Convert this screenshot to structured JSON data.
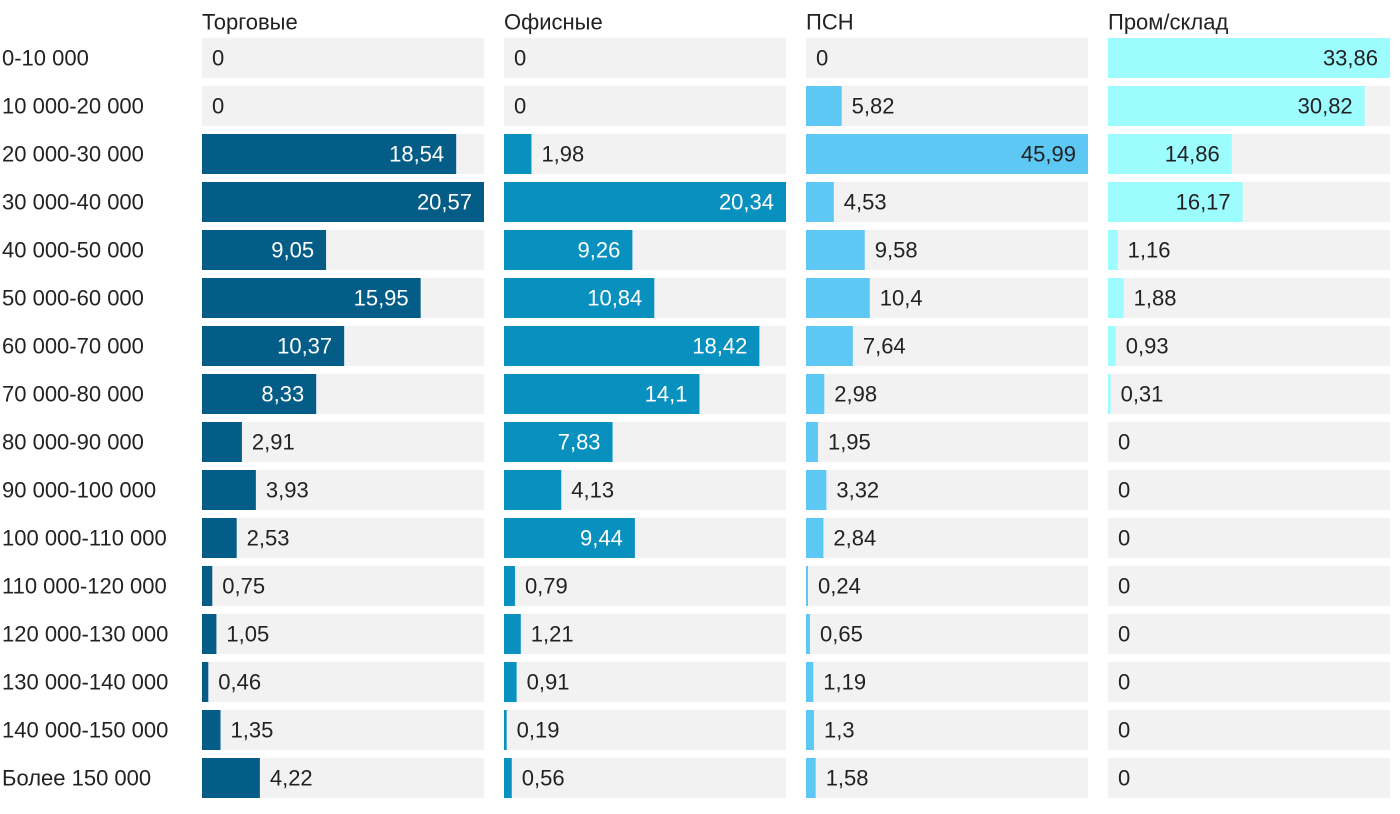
{
  "chart_data": {
    "type": "bar",
    "orientation": "horizontal",
    "layout": "small-multiples",
    "categories": [
      "0-10 000",
      "10 000-20 000",
      "20 000-30 000",
      "30 000-40 000",
      "40 000-50 000",
      "50 000-60 000",
      "60 000-70 000",
      "70 000-80 000",
      "80 000-90 000",
      "90 000-100 000",
      "100 000-110 000",
      "110 000-120 000",
      "120 000-130 000",
      "130 000-140 000",
      "140 000-150 000",
      "Более 150 000"
    ],
    "series": [
      {
        "name": "Торговые",
        "color": "#045d87",
        "max": 20.57,
        "values": [
          0,
          0,
          18.54,
          20.57,
          9.05,
          15.95,
          10.37,
          8.33,
          2.91,
          3.93,
          2.53,
          0.75,
          1.05,
          0.46,
          1.35,
          4.22
        ],
        "labels": [
          "0",
          "0",
          "18,54",
          "20,57",
          "9,05",
          "15,95",
          "10,37",
          "8,33",
          "2,91",
          "3,93",
          "2,53",
          "0,75",
          "1,05",
          "0,46",
          "1,35",
          "4,22"
        ]
      },
      {
        "name": "Офисные",
        "color": "#0891bf",
        "max": 20.34,
        "values": [
          0,
          0,
          1.98,
          20.34,
          9.26,
          10.84,
          18.42,
          14.1,
          7.83,
          4.13,
          9.44,
          0.79,
          1.21,
          0.91,
          0.19,
          0.56
        ],
        "labels": [
          "0",
          "0",
          "1,98",
          "20,34",
          "9,26",
          "10,84",
          "18,42",
          "14,1",
          "7,83",
          "4,13",
          "9,44",
          "0,79",
          "1,21",
          "0,91",
          "0,19",
          "0,56"
        ]
      },
      {
        "name": "ПСН",
        "color": "#5ec8f5",
        "max": 45.99,
        "values": [
          0,
          5.82,
          45.99,
          4.53,
          9.58,
          10.4,
          7.64,
          2.98,
          1.95,
          3.32,
          2.84,
          0.24,
          0.65,
          1.19,
          1.3,
          1.58
        ],
        "labels": [
          "0",
          "5,82",
          "45,99",
          "4,53",
          "9,58",
          "10,4",
          "7,64",
          "2,98",
          "1,95",
          "3,32",
          "2,84",
          "0,24",
          "0,65",
          "1,19",
          "1,3",
          "1,58"
        ]
      },
      {
        "name": "Пром/склад",
        "color": "#9cfcfe",
        "max": 33.86,
        "values": [
          33.86,
          30.82,
          14.86,
          16.17,
          1.16,
          1.88,
          0.93,
          0.31,
          0,
          0,
          0,
          0,
          0,
          0,
          0,
          0
        ],
        "labels": [
          "33,86",
          "30,82",
          "14,86",
          "16,17",
          "1,16",
          "1,88",
          "0,93",
          "0,31",
          "0",
          "0",
          "0",
          "0",
          "0",
          "0",
          "0",
          "0"
        ]
      }
    ],
    "colors": {
      "track": "#f2f2f2",
      "label_dark": "#222222",
      "label_on_dark": "#ffffff"
    },
    "grid": false,
    "legend": "none"
  }
}
